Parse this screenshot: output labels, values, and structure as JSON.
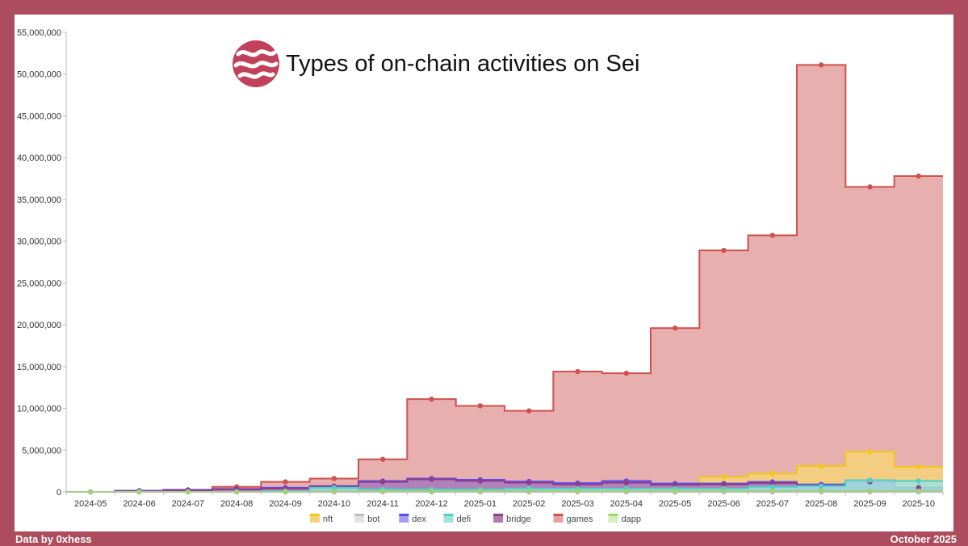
{
  "footer": {
    "source": "Data by 0xhess",
    "date": "October 2025"
  },
  "logo_icon": "sei-wave-logo",
  "chart_data": {
    "type": "area",
    "step": true,
    "title": "Types of on-chain activities on Sei",
    "xlabel": "",
    "ylabel": "",
    "ylim": [
      0,
      55000000
    ],
    "yticks": [
      0,
      5000000,
      10000000,
      15000000,
      20000000,
      25000000,
      30000000,
      35000000,
      40000000,
      45000000,
      50000000,
      55000000
    ],
    "yticklabels": [
      "0",
      "5,000,000",
      "10,000,000",
      "15,000,000",
      "20,000,000",
      "25,000,000",
      "30,000,000",
      "35,000,000",
      "40,000,000",
      "45,000,000",
      "50,000,000",
      "55,000,000"
    ],
    "categories": [
      "2024-05",
      "2024-06",
      "2024-07",
      "2024-08",
      "2024-09",
      "2024-10",
      "2024-11",
      "2024-12",
      "2025-01",
      "2025-02",
      "2025-03",
      "2025-04",
      "2025-05",
      "2025-06",
      "2025-07",
      "2025-08",
      "2025-09",
      "2025-10"
    ],
    "legend_position": "bottom",
    "series": [
      {
        "name": "nft",
        "color": "#f5c518",
        "fill": "#f3d27a",
        "values": [
          0,
          0,
          0,
          0,
          0,
          0,
          0,
          0,
          0,
          0,
          0,
          0,
          0,
          1800000,
          2200000,
          3100000,
          4800000,
          3000000
        ]
      },
      {
        "name": "bot",
        "color": "#bdbdbd",
        "fill": "#e3e3e3",
        "values": [
          0,
          0,
          0,
          0,
          0,
          0,
          0,
          0,
          0,
          0,
          0,
          0,
          0,
          0,
          0,
          0,
          0,
          0
        ]
      },
      {
        "name": "dex",
        "color": "#5b4cf0",
        "fill": "#a69cf2",
        "values": [
          0,
          150000,
          250000,
          350000,
          500000,
          700000,
          1300000,
          1600000,
          1450000,
          1250000,
          1050000,
          1300000,
          1000000,
          1000000,
          1200000,
          900000,
          1400000,
          500000
        ]
      },
      {
        "name": "defi",
        "color": "#4fd1c5",
        "fill": "#9ee3dd",
        "values": [
          0,
          0,
          0,
          0,
          100000,
          500000,
          300000,
          300000,
          300000,
          400000,
          400000,
          400000,
          400000,
          400000,
          600000,
          700000,
          1400000,
          1300000
        ]
      },
      {
        "name": "bridge",
        "color": "#8e3d8a",
        "fill": "#b27bb0",
        "values": [
          0,
          100000,
          200000,
          300000,
          400000,
          650000,
          1200000,
          1500000,
          1300000,
          1100000,
          900000,
          1100000,
          850000,
          900000,
          1050000,
          750000,
          1200000,
          500000
        ]
      },
      {
        "name": "games",
        "color": "#d0504e",
        "fill": "#e3a2a1",
        "values": [
          0,
          100000,
          200000,
          600000,
          1200000,
          1600000,
          3900000,
          11100000,
          10300000,
          9700000,
          14400000,
          14200000,
          19600000,
          28900000,
          30700000,
          51100000,
          36500000,
          37800000
        ]
      },
      {
        "name": "dapp",
        "color": "#9bd46a",
        "fill": "#d3efbb",
        "values": [
          0,
          0,
          0,
          0,
          0,
          50000,
          100000,
          100000,
          100000,
          100000,
          100000,
          100000,
          100000,
          100000,
          100000,
          100000,
          100000,
          100000
        ]
      }
    ]
  }
}
